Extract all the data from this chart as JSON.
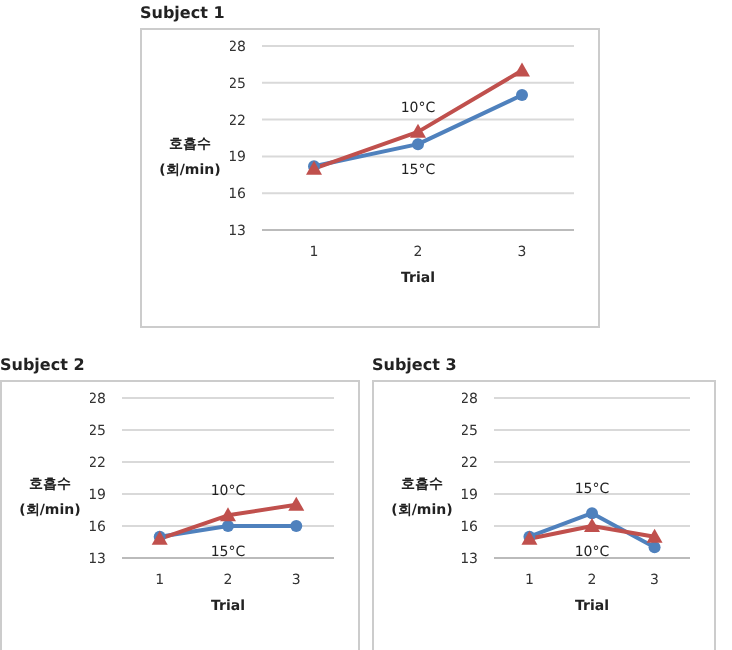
{
  "chart_data": [
    {
      "type": "line",
      "title": "Subject 1",
      "xlabel": "Trial",
      "ylabel": "호흡수 (회/min)",
      "categories": [
        "1",
        "2",
        "3"
      ],
      "ylim": [
        13,
        28
      ],
      "yticks": [
        13,
        16,
        19,
        22,
        25,
        28
      ],
      "grid": "y",
      "legend": false,
      "series": [
        {
          "name": "10°C",
          "color": "#c0504d",
          "marker": "triangle",
          "values": [
            18,
            21,
            26
          ]
        },
        {
          "name": "15°C",
          "color": "#4f81bd",
          "marker": "circle",
          "values": [
            18.2,
            20,
            24
          ]
        }
      ]
    },
    {
      "type": "line",
      "title": "Subject 2",
      "xlabel": "Trial",
      "ylabel": "호흡수 (회/min)",
      "categories": [
        "1",
        "2",
        "3"
      ],
      "ylim": [
        13,
        28
      ],
      "yticks": [
        13,
        16,
        19,
        22,
        25,
        28
      ],
      "grid": "y",
      "legend": false,
      "series": [
        {
          "name": "10°C",
          "color": "#c0504d",
          "marker": "triangle",
          "values": [
            14.8,
            17,
            18
          ]
        },
        {
          "name": "15°C",
          "color": "#4f81bd",
          "marker": "circle",
          "values": [
            15,
            16,
            16
          ]
        }
      ]
    },
    {
      "type": "line",
      "title": "Subject 3",
      "xlabel": "Trial",
      "ylabel": "호흡수 (회/min)",
      "categories": [
        "1",
        "2",
        "3"
      ],
      "ylim": [
        13,
        28
      ],
      "yticks": [
        13,
        16,
        19,
        22,
        25,
        28
      ],
      "grid": "y",
      "legend": false,
      "series": [
        {
          "name": "10°C",
          "color": "#c0504d",
          "marker": "triangle",
          "values": [
            14.8,
            16,
            15
          ]
        },
        {
          "name": "15°C",
          "color": "#4f81bd",
          "marker": "circle",
          "values": [
            15,
            17.2,
            14
          ]
        }
      ]
    }
  ]
}
